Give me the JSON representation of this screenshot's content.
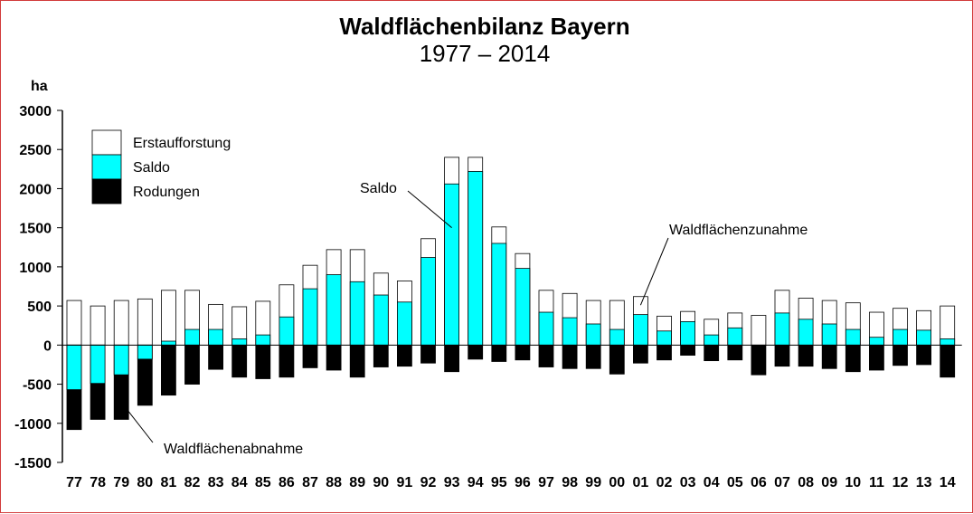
{
  "chart_data": {
    "type": "bar",
    "title": "Waldflächenbilanz Bayern",
    "subtitle": "1977 – 2014",
    "ylabel": "ha",
    "ylim": [
      -1500,
      3000
    ],
    "yticks": [
      3000,
      2500,
      2000,
      1500,
      1000,
      500,
      0,
      -500,
      -1000,
      -1500
    ],
    "categories": [
      "77",
      "78",
      "79",
      "80",
      "81",
      "82",
      "83",
      "84",
      "85",
      "86",
      "87",
      "88",
      "89",
      "90",
      "91",
      "92",
      "93",
      "94",
      "95",
      "96",
      "97",
      "98",
      "99",
      "00",
      "01",
      "02",
      "03",
      "04",
      "05",
      "06",
      "07",
      "08",
      "09",
      "10",
      "11",
      "12",
      "13",
      "14"
    ],
    "series": [
      {
        "name": "Erstaufforstung",
        "color": "#ffffff",
        "values": [
          570,
          500,
          570,
          590,
          700,
          700,
          520,
          490,
          560,
          770,
          1020,
          1220,
          1220,
          920,
          820,
          1360,
          2400,
          2400,
          1510,
          1170,
          700,
          660,
          570,
          570,
          620,
          370,
          430,
          330,
          410,
          380,
          700,
          600,
          570,
          540,
          420,
          470,
          440,
          500
        ]
      },
      {
        "name": "Saldo",
        "color": "#00ffff",
        "values": [
          -570,
          -490,
          -380,
          -180,
          50,
          200,
          200,
          80,
          130,
          360,
          720,
          900,
          810,
          640,
          550,
          1120,
          2060,
          2220,
          1300,
          980,
          420,
          350,
          270,
          200,
          390,
          180,
          300,
          130,
          220,
          0,
          410,
          330,
          270,
          200,
          100,
          200,
          190,
          80
        ]
      },
      {
        "name": "Rodungen",
        "color": "#000000",
        "values": [
          -1080,
          -950,
          -950,
          -770,
          -640,
          -500,
          -310,
          -410,
          -430,
          -410,
          -290,
          -320,
          -410,
          -280,
          -270,
          -230,
          -340,
          -180,
          -210,
          -190,
          -280,
          -300,
          -300,
          -370,
          -230,
          -190,
          -130,
          -200,
          -190,
          -380,
          -270,
          -270,
          -300,
          -340,
          -320,
          -260,
          -250,
          -410
        ]
      }
    ],
    "annotations": [
      {
        "text": "Saldo",
        "target": "93"
      },
      {
        "text": "Waldflächenzunahme",
        "target": "01"
      },
      {
        "text": "Waldflächenabnahme",
        "target": "79"
      }
    ],
    "legend_position": "top-left",
    "grid": false
  }
}
